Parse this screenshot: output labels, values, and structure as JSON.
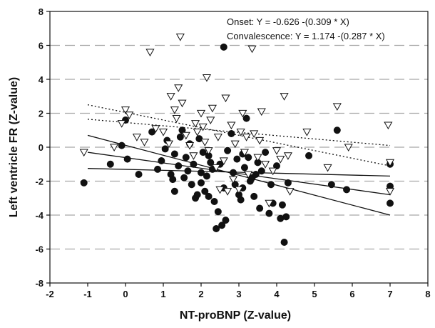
{
  "chart_data": {
    "type": "scatter",
    "title": "",
    "xlabel": "NT-proBNP (Z-value)",
    "ylabel": "Left ventricle FR (Z-value)",
    "xlim": [
      -2,
      8
    ],
    "ylim": [
      -8,
      8
    ],
    "x_ticks": [
      "-2",
      "-1",
      "0",
      "1",
      "2",
      "3",
      "4",
      "5",
      "6",
      "7",
      "8"
    ],
    "y_ticks": [
      "8",
      "6",
      "4",
      "2",
      "0",
      "-2",
      "-4",
      "-6",
      "-8"
    ],
    "grid": "horizontal dashed",
    "annotations": [
      "Onset: Y = -0.626 -(0.309 * X)",
      "Convalescence: Y = 1.174 -(0.287 * X)"
    ],
    "series": [
      {
        "marker": "filled-circle",
        "color": "#111111",
        "points": [
          [
            -1.1,
            -2.1
          ],
          [
            -0.4,
            -1.0
          ],
          [
            -0.1,
            0.1
          ],
          [
            0.0,
            1.6
          ],
          [
            0.05,
            -0.7
          ],
          [
            0.35,
            -1.6
          ],
          [
            0.7,
            0.9
          ],
          [
            0.85,
            -1.3
          ],
          [
            0.95,
            -0.8
          ],
          [
            1.05,
            -0.1
          ],
          [
            1.1,
            0.4
          ],
          [
            1.2,
            -1.6
          ],
          [
            1.25,
            -1.9
          ],
          [
            1.3,
            -0.4
          ],
          [
            1.3,
            -2.6
          ],
          [
            1.4,
            -1.1
          ],
          [
            1.45,
            0.6
          ],
          [
            1.5,
            1.0
          ],
          [
            1.55,
            -1.8
          ],
          [
            1.6,
            -0.6
          ],
          [
            1.65,
            -1.4
          ],
          [
            1.7,
            0.2
          ],
          [
            1.75,
            -2.2
          ],
          [
            1.8,
            -1.0
          ],
          [
            1.85,
            -3.0
          ],
          [
            1.9,
            -2.8
          ],
          [
            1.95,
            0.5
          ],
          [
            2.0,
            -1.5
          ],
          [
            2.0,
            -2.1
          ],
          [
            2.05,
            -0.3
          ],
          [
            2.1,
            -2.6
          ],
          [
            2.15,
            -1.7
          ],
          [
            2.2,
            -0.5
          ],
          [
            2.2,
            -2.9
          ],
          [
            2.25,
            -0.9
          ],
          [
            2.3,
            -1.3
          ],
          [
            2.35,
            -3.2
          ],
          [
            2.4,
            -4.8
          ],
          [
            2.45,
            -3.8
          ],
          [
            2.5,
            -1.0
          ],
          [
            2.55,
            -4.6
          ],
          [
            2.6,
            5.9
          ],
          [
            2.6,
            -2.4
          ],
          [
            2.65,
            -4.3
          ],
          [
            2.7,
            -0.2
          ],
          [
            2.8,
            0.8
          ],
          [
            2.85,
            -1.5
          ],
          [
            2.9,
            -2.2
          ],
          [
            2.95,
            -0.7
          ],
          [
            3.0,
            -2.8
          ],
          [
            3.05,
            -3.1
          ],
          [
            3.1,
            -0.4
          ],
          [
            3.1,
            -2.4
          ],
          [
            3.15,
            -1.2
          ],
          [
            3.2,
            1.7
          ],
          [
            3.25,
            -0.6
          ],
          [
            3.3,
            -2.0
          ],
          [
            3.35,
            -1.8
          ],
          [
            3.4,
            -2.9
          ],
          [
            3.45,
            -1.6
          ],
          [
            3.5,
            -0.9
          ],
          [
            3.55,
            -3.6
          ],
          [
            3.6,
            -1.4
          ],
          [
            3.7,
            -0.3
          ],
          [
            3.8,
            -3.9
          ],
          [
            3.85,
            -2.2
          ],
          [
            3.9,
            -3.3
          ],
          [
            4.0,
            -1.1
          ],
          [
            4.1,
            -4.2
          ],
          [
            4.15,
            -3.4
          ],
          [
            4.2,
            -5.6
          ],
          [
            4.25,
            -4.1
          ],
          [
            4.3,
            -2.1
          ],
          [
            4.85,
            -0.5
          ],
          [
            5.45,
            -2.2
          ],
          [
            5.6,
            1.0
          ],
          [
            5.85,
            -2.5
          ],
          [
            7.0,
            -1.0
          ],
          [
            7.0,
            -2.3
          ],
          [
            7.0,
            -3.3
          ]
        ]
      },
      {
        "marker": "open-triangle-down",
        "color": "#111111",
        "points": [
          [
            -1.1,
            -0.3
          ],
          [
            -0.3,
            0.0
          ],
          [
            -0.1,
            1.4
          ],
          [
            0.0,
            2.2
          ],
          [
            0.1,
            1.9
          ],
          [
            0.3,
            0.6
          ],
          [
            0.5,
            0.3
          ],
          [
            0.65,
            5.6
          ],
          [
            0.8,
            1.1
          ],
          [
            1.0,
            0.9
          ],
          [
            1.15,
            0.2
          ],
          [
            1.2,
            3.0
          ],
          [
            1.3,
            2.2
          ],
          [
            1.35,
            1.7
          ],
          [
            1.4,
            3.5
          ],
          [
            1.45,
            6.5
          ],
          [
            1.5,
            2.6
          ],
          [
            1.6,
            0.7
          ],
          [
            1.7,
            0.1
          ],
          [
            1.8,
            -0.5
          ],
          [
            1.85,
            1.4
          ],
          [
            1.9,
            0.9
          ],
          [
            2.0,
            2.0
          ],
          [
            2.05,
            1.2
          ],
          [
            2.1,
            0.3
          ],
          [
            2.15,
            4.1
          ],
          [
            2.2,
            -0.2
          ],
          [
            2.25,
            1.6
          ],
          [
            2.3,
            2.3
          ],
          [
            2.4,
            -1.2
          ],
          [
            2.45,
            0.6
          ],
          [
            2.5,
            -2.5
          ],
          [
            2.6,
            -0.8
          ],
          [
            2.65,
            2.9
          ],
          [
            2.7,
            -2.6
          ],
          [
            2.8,
            1.3
          ],
          [
            2.85,
            -1.9
          ],
          [
            2.9,
            0.2
          ],
          [
            3.0,
            -2.5
          ],
          [
            3.05,
            0.9
          ],
          [
            3.1,
            2.0
          ],
          [
            3.15,
            -0.3
          ],
          [
            3.2,
            0.6
          ],
          [
            3.25,
            -1.6
          ],
          [
            3.35,
            5.8
          ],
          [
            3.4,
            0.8
          ],
          [
            3.5,
            -0.6
          ],
          [
            3.55,
            0.4
          ],
          [
            3.6,
            2.1
          ],
          [
            3.7,
            -1.0
          ],
          [
            3.8,
            -3.3
          ],
          [
            3.9,
            -1.4
          ],
          [
            4.0,
            -0.2
          ],
          [
            4.1,
            -0.7
          ],
          [
            4.2,
            3.0
          ],
          [
            4.3,
            -0.5
          ],
          [
            4.35,
            -2.6
          ],
          [
            4.8,
            0.9
          ],
          [
            5.35,
            -1.2
          ],
          [
            5.6,
            2.4
          ],
          [
            5.9,
            0.0
          ],
          [
            6.95,
            1.3
          ],
          [
            7.0,
            -0.9
          ],
          [
            7.0,
            -2.6
          ]
        ]
      }
    ],
    "regression_lines": [
      {
        "style": "solid",
        "from": [
          -1.0,
          0.7
        ],
        "to": [
          7.0,
          -4.0
        ]
      },
      {
        "style": "solid",
        "from": [
          -1.0,
          -0.3
        ],
        "to": [
          7.0,
          -2.8
        ]
      },
      {
        "style": "solid",
        "from": [
          -1.0,
          -1.25
        ],
        "to": [
          7.0,
          -1.7
        ]
      },
      {
        "style": "dotted",
        "from": [
          -1.0,
          2.5
        ],
        "to": [
          7.0,
          -1.1
        ]
      },
      {
        "style": "dotted",
        "from": [
          -1.0,
          1.65
        ],
        "to": [
          7.0,
          0.1
        ]
      }
    ]
  }
}
